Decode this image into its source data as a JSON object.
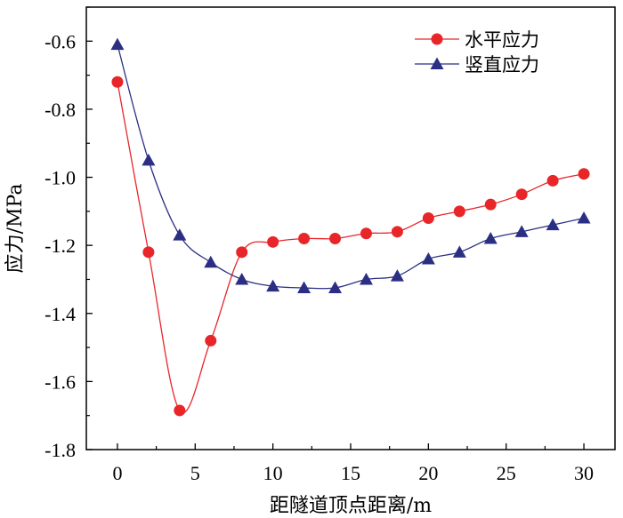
{
  "chart_data": {
    "type": "line",
    "title": "",
    "xlabel": "距隧道顶点距离/m",
    "ylabel": "应力/MPa",
    "xlim": [
      -2,
      32
    ],
    "ylim": [
      -1.8,
      -0.5
    ],
    "xticks": [
      0,
      5,
      10,
      15,
      20,
      25,
      30
    ],
    "xtick_labels": [
      "0",
      "5",
      "10",
      "15",
      "20",
      "25",
      "30"
    ],
    "yticks": [
      -0.6,
      -0.8,
      -1.0,
      -1.2,
      -1.4,
      -1.6,
      -1.8
    ],
    "ytick_labels": [
      "-0.6",
      "-0.8",
      "-1.0",
      "-1.2",
      "-1.4",
      "-1.6",
      "-1.8"
    ],
    "grid": false,
    "legend_position": "top-right",
    "series": [
      {
        "name": "水平应力",
        "marker": "circle",
        "color": "#e8262a",
        "x": [
          0,
          2,
          4,
          6,
          8,
          10,
          12,
          14,
          16,
          18,
          20,
          22,
          24,
          26,
          28,
          30
        ],
        "values": [
          -0.72,
          -1.22,
          -1.685,
          -1.48,
          -1.22,
          -1.19,
          -1.18,
          -1.18,
          -1.165,
          -1.16,
          -1.12,
          -1.1,
          -1.08,
          -1.05,
          -1.01,
          -0.99
        ]
      },
      {
        "name": "竖直应力",
        "marker": "triangle",
        "color": "#2b2f83",
        "x": [
          0,
          2,
          4,
          6,
          8,
          10,
          12,
          14,
          16,
          18,
          20,
          22,
          24,
          26,
          28,
          30
        ],
        "values": [
          -0.61,
          -0.95,
          -1.17,
          -1.25,
          -1.3,
          -1.32,
          -1.325,
          -1.325,
          -1.3,
          -1.29,
          -1.24,
          -1.22,
          -1.18,
          -1.16,
          -1.14,
          -1.12
        ]
      }
    ]
  }
}
